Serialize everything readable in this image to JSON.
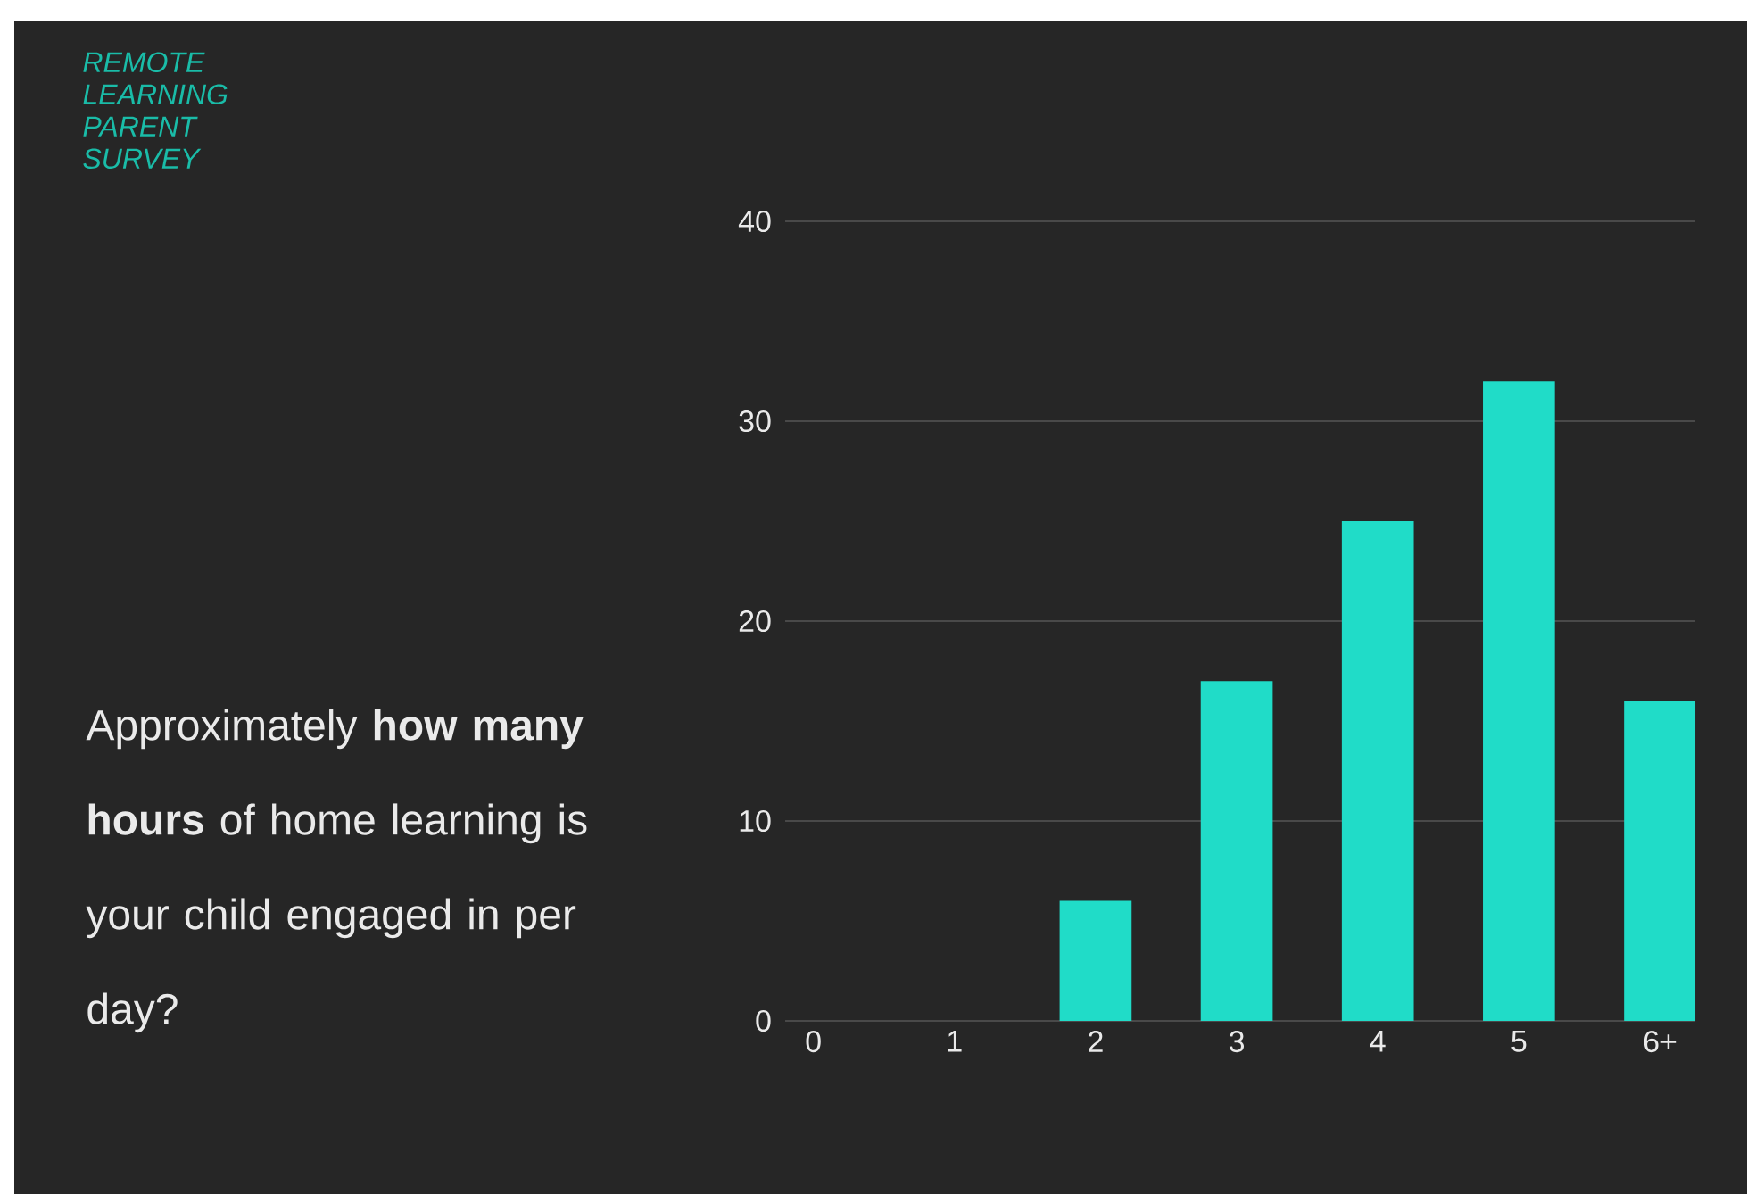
{
  "chart_data": {
    "type": "bar",
    "title": "REMOTE LEARNING PARENT SURVEY",
    "subtitle": "Approximately **how many hours** of home learning is your child engaged in per day?",
    "categories": [
      "0",
      "1",
      "2",
      "3",
      "4",
      "5",
      "6+"
    ],
    "values": [
      0,
      0,
      6,
      17,
      25,
      32,
      16
    ],
    "color": "#20dcc8",
    "ylim": [
      0,
      40
    ],
    "yticks": [
      0,
      10,
      20,
      30,
      40
    ],
    "grid": "y"
  }
}
